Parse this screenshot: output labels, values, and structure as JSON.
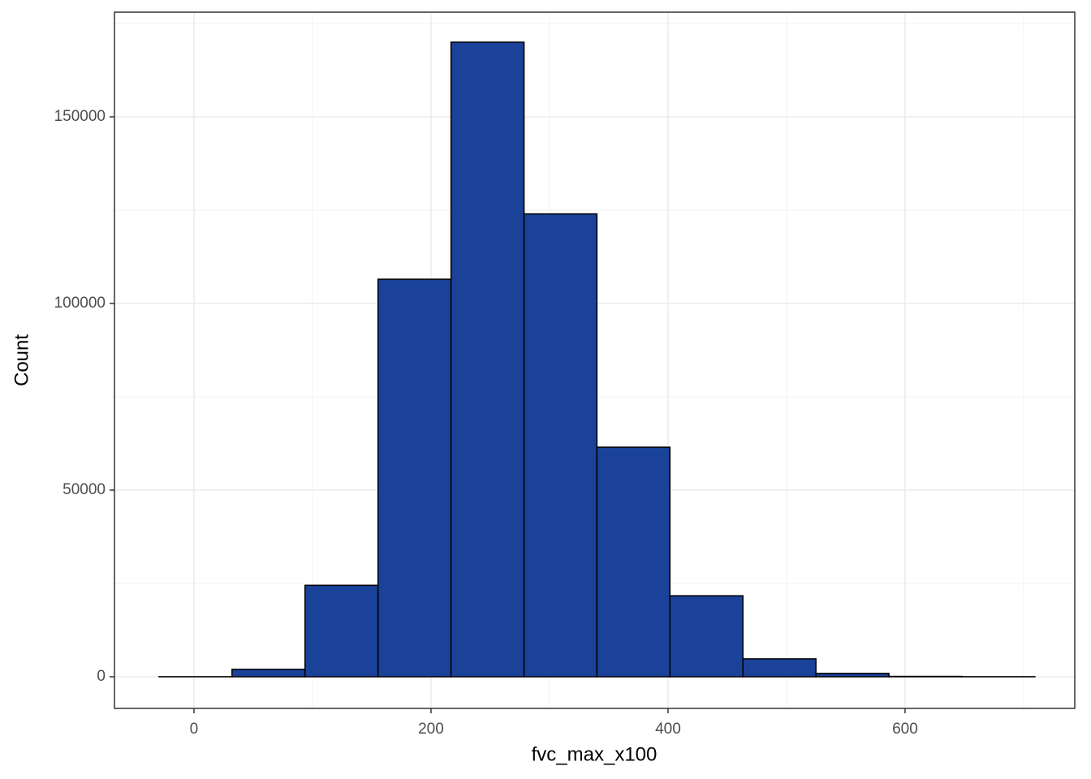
{
  "chart_data": {
    "type": "histogram",
    "x_label": "fvc_max_x100",
    "y_label": "Count",
    "bins": [
      -29.5,
      32.1,
      93.7,
      155.3,
      216.9,
      278.5,
      340.0,
      401.6,
      463.2,
      524.8,
      586.4,
      648.0,
      709.6
    ],
    "counts": [
      20,
      2000,
      24500,
      106500,
      170000,
      124000,
      61500,
      21700,
      4800,
      900,
      100,
      20
    ],
    "color": "#1a4299",
    "edgecolor": "#000000",
    "xlim": [
      -67.1,
      743.2
    ],
    "ylim": [
      -8478,
      178043
    ],
    "xticks": [
      0,
      200,
      400,
      600
    ],
    "yticks": [
      0,
      50000,
      100000,
      150000
    ],
    "xticks_minor": [
      100,
      300,
      500,
      700
    ],
    "yticks_minor": [
      25000,
      75000,
      125000,
      175000
    ],
    "grid": true
  }
}
